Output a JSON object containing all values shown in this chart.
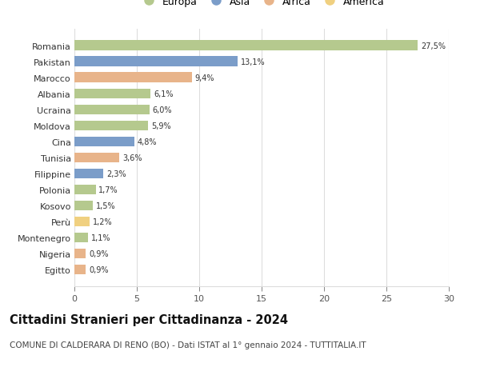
{
  "categories": [
    "Romania",
    "Pakistan",
    "Marocco",
    "Albania",
    "Ucraina",
    "Moldova",
    "Cina",
    "Tunisia",
    "Filippine",
    "Polonia",
    "Kosovo",
    "Perù",
    "Montenegro",
    "Nigeria",
    "Egitto"
  ],
  "values": [
    27.5,
    13.1,
    9.4,
    6.1,
    6.0,
    5.9,
    4.8,
    3.6,
    2.3,
    1.7,
    1.5,
    1.2,
    1.1,
    0.9,
    0.9
  ],
  "labels": [
    "27,5%",
    "13,1%",
    "9,4%",
    "6,1%",
    "6,0%",
    "5,9%",
    "4,8%",
    "3,6%",
    "2,3%",
    "1,7%",
    "1,5%",
    "1,2%",
    "1,1%",
    "0,9%",
    "0,9%"
  ],
  "continents": [
    "Europa",
    "Asia",
    "Africa",
    "Europa",
    "Europa",
    "Europa",
    "Asia",
    "Africa",
    "Asia",
    "Europa",
    "Europa",
    "America",
    "Europa",
    "Africa",
    "Africa"
  ],
  "continent_colors": {
    "Europa": "#b5c98e",
    "Asia": "#7b9dc9",
    "Africa": "#e8b48a",
    "America": "#f0d080"
  },
  "legend_order": [
    "Europa",
    "Asia",
    "Africa",
    "America"
  ],
  "title": "Cittadini Stranieri per Cittadinanza - 2024",
  "subtitle": "COMUNE DI CALDERARA DI RENO (BO) - Dati ISTAT al 1° gennaio 2024 - TUTTITALIA.IT",
  "xlim": [
    0,
    30
  ],
  "xticks": [
    0,
    5,
    10,
    15,
    20,
    25,
    30
  ],
  "background_color": "#ffffff",
  "grid_color": "#dddddd",
  "title_fontsize": 10.5,
  "subtitle_fontsize": 7.5,
  "bar_height": 0.62
}
